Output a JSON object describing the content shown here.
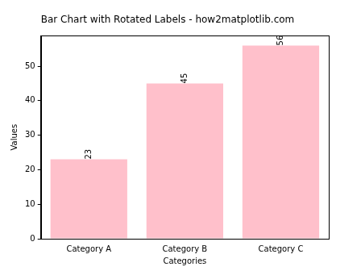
{
  "chart_data": {
    "type": "bar",
    "title": "Bar Chart with Rotated Labels - how2matplotlib.com",
    "x_label": "Categories",
    "y_label": "Values",
    "categories": [
      "Category A",
      "Category B",
      "Category C"
    ],
    "values": [
      23,
      45,
      56
    ],
    "color": "#ffc0cb",
    "ylim": [
      0,
      58.8
    ],
    "yticks": [
      0,
      10,
      20,
      30,
      40,
      50
    ],
    "grid": false,
    "data_labels": true
  }
}
